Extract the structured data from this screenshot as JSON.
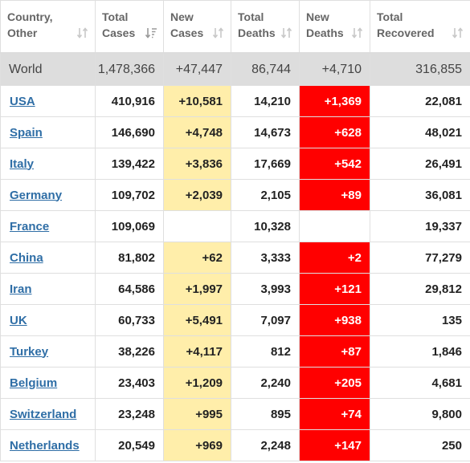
{
  "headers": {
    "country": [
      "Country,",
      "Other"
    ],
    "total_cases": [
      "Total",
      "Cases"
    ],
    "new_cases": [
      "New",
      "Cases"
    ],
    "total_deaths": [
      "Total",
      "Deaths"
    ],
    "new_deaths": [
      "New",
      "Deaths"
    ],
    "total_recovered": [
      "Total",
      "Recovered"
    ]
  },
  "icons": {
    "sort_neutral": "sort-arrows-icon",
    "sort_active": "sort-descending-icon"
  },
  "colors": {
    "new_cases_bg": "#ffeeaa",
    "new_deaths_bg": "#ff0000",
    "world_row_bg": "#dddddd",
    "country_link": "#2f6ea6"
  },
  "world": {
    "country": "World",
    "total_cases": "1,478,366",
    "new_cases": "+47,447",
    "total_deaths": "86,744",
    "new_deaths": "+4,710",
    "total_recovered": "316,855"
  },
  "rows": [
    {
      "country": "USA",
      "total_cases": "410,916",
      "new_cases": "+10,581",
      "total_deaths": "14,210",
      "new_deaths": "+1,369",
      "total_recovered": "22,081"
    },
    {
      "country": "Spain",
      "total_cases": "146,690",
      "new_cases": "+4,748",
      "total_deaths": "14,673",
      "new_deaths": "+628",
      "total_recovered": "48,021"
    },
    {
      "country": "Italy",
      "total_cases": "139,422",
      "new_cases": "+3,836",
      "total_deaths": "17,669",
      "new_deaths": "+542",
      "total_recovered": "26,491"
    },
    {
      "country": "Germany",
      "total_cases": "109,702",
      "new_cases": "+2,039",
      "total_deaths": "2,105",
      "new_deaths": "+89",
      "total_recovered": "36,081"
    },
    {
      "country": "France",
      "total_cases": "109,069",
      "new_cases": "",
      "total_deaths": "10,328",
      "new_deaths": "",
      "total_recovered": "19,337"
    },
    {
      "country": "China",
      "total_cases": "81,802",
      "new_cases": "+62",
      "total_deaths": "3,333",
      "new_deaths": "+2",
      "total_recovered": "77,279"
    },
    {
      "country": "Iran",
      "total_cases": "64,586",
      "new_cases": "+1,997",
      "total_deaths": "3,993",
      "new_deaths": "+121",
      "total_recovered": "29,812"
    },
    {
      "country": "UK",
      "total_cases": "60,733",
      "new_cases": "+5,491",
      "total_deaths": "7,097",
      "new_deaths": "+938",
      "total_recovered": "135"
    },
    {
      "country": "Turkey",
      "total_cases": "38,226",
      "new_cases": "+4,117",
      "total_deaths": "812",
      "new_deaths": "+87",
      "total_recovered": "1,846"
    },
    {
      "country": "Belgium",
      "total_cases": "23,403",
      "new_cases": "+1,209",
      "total_deaths": "2,240",
      "new_deaths": "+205",
      "total_recovered": "4,681"
    },
    {
      "country": "Switzerland",
      "total_cases": "23,248",
      "new_cases": "+995",
      "total_deaths": "895",
      "new_deaths": "+74",
      "total_recovered": "9,800"
    },
    {
      "country": "Netherlands",
      "total_cases": "20,549",
      "new_cases": "+969",
      "total_deaths": "2,248",
      "new_deaths": "+147",
      "total_recovered": "250"
    }
  ]
}
